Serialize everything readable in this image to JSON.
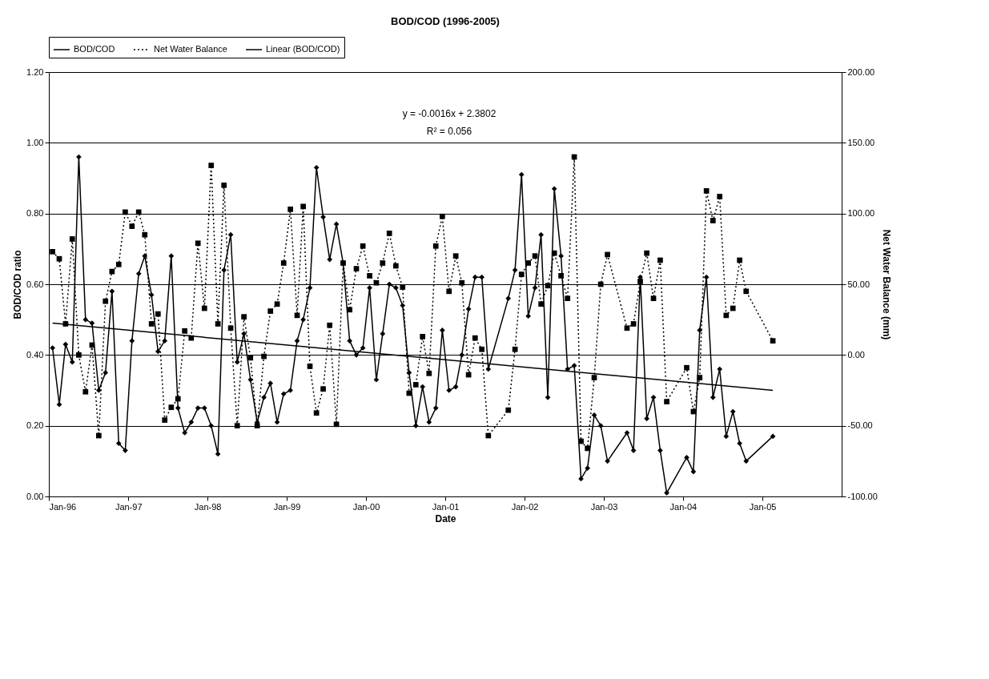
{
  "chart_data": {
    "type": "line",
    "title": "BOD/COD (1996-2005)",
    "xlabel": "Date",
    "ylabel": "BOD/COD ratio",
    "y2label": "Net Water Balance (mm)",
    "x": [
      "1996-01-18",
      "1996-02-18",
      "1996-03-18",
      "1996-04-18",
      "1996-05-18",
      "1996-06-18",
      "1996-07-18",
      "1996-08-18",
      "1996-09-18",
      "1996-10-18",
      "1996-11-18",
      "1996-12-18",
      "1997-01-18",
      "1997-02-18",
      "1997-03-18",
      "1997-04-18",
      "1997-05-18",
      "1997-06-18",
      "1997-07-18",
      "1997-08-18",
      "1997-09-18",
      "1997-10-18",
      "1997-11-18",
      "1997-12-18",
      "1998-01-18",
      "1998-02-18",
      "1998-03-18",
      "1998-04-18",
      "1998-05-18",
      "1998-06-18",
      "1998-07-18",
      "1998-08-18",
      "1998-09-18",
      "1998-10-18",
      "1998-11-18",
      "1998-12-18",
      "1999-01-18",
      "1999-02-18",
      "1999-03-18",
      "1999-04-18",
      "1999-05-18",
      "1999-06-18",
      "1999-07-18",
      "1999-08-18",
      "1999-09-18",
      "1999-10-18",
      "1999-11-18",
      "1999-12-18",
      "2000-01-18",
      "2000-02-18",
      "2000-03-18",
      "2000-04-18",
      "2000-05-18",
      "2000-06-18",
      "2000-07-18",
      "2000-08-18",
      "2000-09-18",
      "2000-10-18",
      "2000-11-18",
      "2000-12-18",
      "2001-01-18",
      "2001-02-18",
      "2001-03-18",
      "2001-04-18",
      "2001-05-18",
      "2001-06-18",
      "2001-07-18",
      "2001-10-18",
      "2001-11-18",
      "2001-12-18",
      "2002-01-18",
      "2002-02-18",
      "2002-03-18",
      "2002-04-18",
      "2002-05-18",
      "2002-06-18",
      "2002-07-18",
      "2002-08-18",
      "2002-09-18",
      "2002-10-18",
      "2002-11-18",
      "2002-12-18",
      "2003-01-18",
      "2003-04-18",
      "2003-05-18",
      "2003-06-18",
      "2003-07-18",
      "2003-08-18",
      "2003-09-18",
      "2003-10-18",
      "2004-01-18",
      "2004-02-18",
      "2004-03-18",
      "2004-04-18",
      "2004-05-18",
      "2004-06-18",
      "2004-07-18",
      "2004-08-18",
      "2004-09-18",
      "2004-10-18",
      "2005-02-18"
    ],
    "series": [
      {
        "name": "BOD/COD",
        "color": "#000000",
        "marker": "diamond",
        "line_style": "solid",
        "values": [
          0.42,
          0.26,
          0.43,
          0.38,
          0.96,
          0.5,
          0.49,
          0.3,
          0.35,
          0.58,
          0.15,
          0.13,
          0.44,
          0.63,
          0.68,
          0.57,
          0.41,
          0.44,
          0.68,
          0.25,
          0.18,
          0.21,
          0.25,
          0.25,
          0.2,
          0.12,
          0.64,
          0.74,
          0.38,
          0.46,
          0.33,
          0.21,
          0.28,
          0.32,
          0.21,
          0.29,
          0.3,
          0.44,
          0.5,
          0.59,
          0.93,
          0.79,
          0.67,
          0.77,
          0.66,
          0.44,
          0.4,
          0.42,
          0.59,
          0.33,
          0.46,
          0.6,
          0.59,
          0.54,
          0.35,
          0.2,
          0.31,
          0.21,
          0.25,
          0.47,
          0.3,
          0.31,
          0.4,
          0.53,
          0.62,
          0.62,
          0.36,
          0.56,
          0.64,
          0.91,
          0.51,
          0.59,
          0.74,
          0.28,
          0.87,
          0.68,
          0.36,
          0.37,
          0.05,
          0.08,
          0.23,
          0.2,
          0.1,
          0.18,
          0.13,
          0.62,
          0.22,
          0.28,
          0.13,
          0.01,
          0.11,
          0.07,
          0.47,
          0.62,
          0.28,
          0.36,
          0.17,
          0.24,
          0.15,
          0.1,
          0.17
        ]
      },
      {
        "name": "Net Water Balance",
        "axis": "y2",
        "color": "#000000",
        "marker": "square",
        "line_style": "dotted",
        "values": [
          73,
          68,
          22,
          82,
          0,
          -26,
          7,
          -57,
          38,
          59,
          64,
          101,
          91,
          101,
          85,
          22,
          29,
          -46,
          -37,
          -31,
          17,
          12,
          79,
          33,
          134,
          22,
          120,
          19,
          -50,
          27,
          -2,
          -50,
          -1,
          31,
          36,
          65,
          103,
          28,
          105,
          -8,
          -41,
          -24,
          21,
          -49,
          65,
          32,
          61,
          77,
          56,
          51,
          65,
          86,
          63,
          48,
          -27,
          -21,
          13,
          -13,
          77,
          98,
          45,
          70,
          51,
          -14,
          12,
          4,
          -57,
          -39,
          4,
          57,
          65,
          70,
          36,
          49,
          72,
          56,
          40,
          140,
          -61,
          -66,
          -16,
          50,
          71,
          19,
          22,
          52,
          72,
          40,
          67,
          -33,
          -9,
          -40,
          -16,
          116,
          95,
          112,
          28,
          33,
          67,
          45,
          10
        ]
      },
      {
        "name": "Linear (BOD/COD)",
        "color": "#000000",
        "marker": "none",
        "line_style": "solid",
        "x": [
          "1996-01-18",
          "2005-02-18"
        ],
        "values": [
          0.49,
          0.3
        ]
      }
    ],
    "xlim": [
      "1996-01-01",
      "2006-01-01"
    ],
    "xticks": [
      {
        "value": "1996-01-01",
        "label": "Jan-96"
      },
      {
        "value": "1997-01-01",
        "label": "Jan-97"
      },
      {
        "value": "1998-01-01",
        "label": "Jan-98"
      },
      {
        "value": "1999-01-01",
        "label": "Jan-99"
      },
      {
        "value": "2000-01-01",
        "label": "Jan-00"
      },
      {
        "value": "2001-01-01",
        "label": "Jan-01"
      },
      {
        "value": "2002-01-01",
        "label": "Jan-02"
      },
      {
        "value": "2003-01-01",
        "label": "Jan-03"
      },
      {
        "value": "2004-01-01",
        "label": "Jan-04"
      },
      {
        "value": "2005-01-01",
        "label": "Jan-05"
      }
    ],
    "ylim": [
      0,
      1.2
    ],
    "yticks": [
      {
        "value": 0,
        "label": "0.00"
      },
      {
        "value": 0.2,
        "label": "0.20"
      },
      {
        "value": 0.4,
        "label": "0.40"
      },
      {
        "value": 0.6,
        "label": "0.60"
      },
      {
        "value": 0.8,
        "label": "0.80"
      },
      {
        "value": 1.0,
        "label": "1.00"
      },
      {
        "value": 1.2,
        "label": "1.20"
      }
    ],
    "y2lim": [
      -100,
      200
    ],
    "y2ticks": [
      {
        "value": -100,
        "label": "-100.00"
      },
      {
        "value": -50,
        "label": "-50.00"
      },
      {
        "value": 0,
        "label": "0.00"
      },
      {
        "value": 50,
        "label": "50.00"
      },
      {
        "value": 100,
        "label": "100.00"
      },
      {
        "value": 150,
        "label": "150.00"
      },
      {
        "value": 200,
        "label": "200.00"
      }
    ],
    "annotations": [
      "y = -0.0016x + 2.3802",
      "R² = 0.056"
    ],
    "grid": "y",
    "legend": "top"
  }
}
